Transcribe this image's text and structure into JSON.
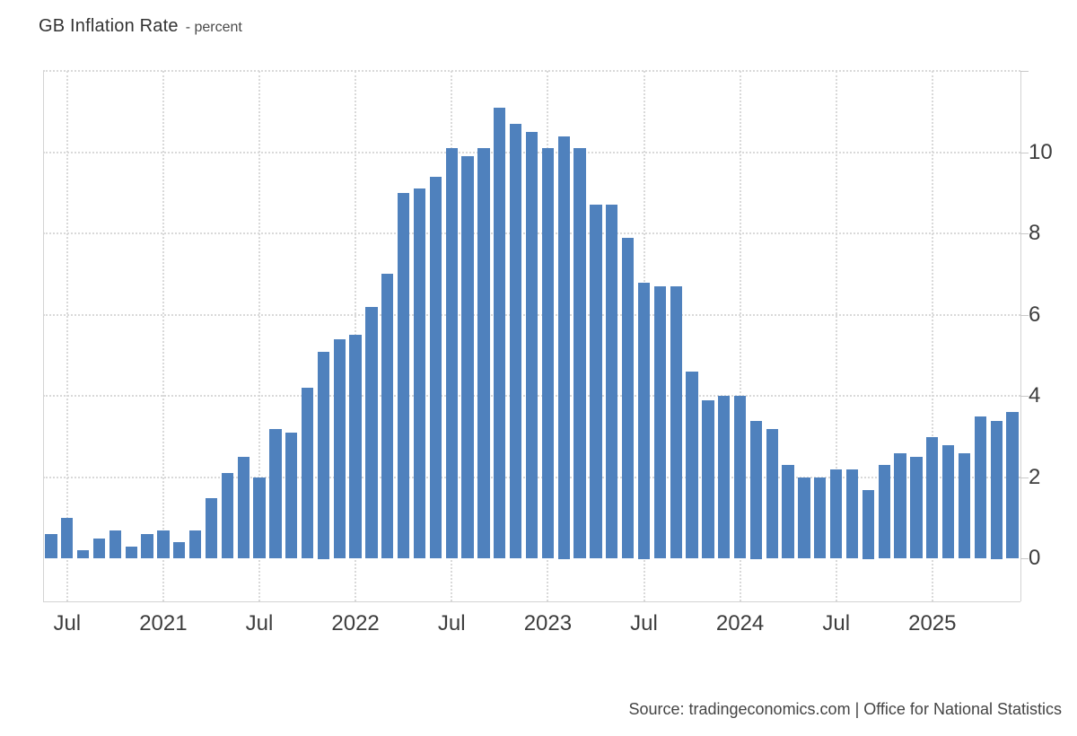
{
  "header": {
    "title": "GB Inflation Rate",
    "subtitle": "- percent"
  },
  "footer": {
    "source": "Source: tradingeconomics.com | Office for National Statistics"
  },
  "chart_data": {
    "type": "bar",
    "title": "GB Inflation Rate",
    "ylabel": "percent",
    "categories": [
      "Jun 2020",
      "Jul 2020",
      "Aug 2020",
      "Sep 2020",
      "Oct 2020",
      "Nov 2020",
      "Dec 2020",
      "Jan 2021",
      "Feb 2021",
      "Mar 2021",
      "Apr 2021",
      "May 2021",
      "Jun 2021",
      "Jul 2021",
      "Aug 2021",
      "Sep 2021",
      "Oct 2021",
      "Nov 2021",
      "Dec 2021",
      "Jan 2022",
      "Feb 2022",
      "Mar 2022",
      "Apr 2022",
      "May 2022",
      "Jun 2022",
      "Jul 2022",
      "Aug 2022",
      "Sep 2022",
      "Oct 2022",
      "Nov 2022",
      "Dec 2022",
      "Jan 2023",
      "Feb 2023",
      "Mar 2023",
      "Apr 2023",
      "May 2023",
      "Jun 2023",
      "Jul 2023",
      "Aug 2023",
      "Sep 2023",
      "Oct 2023",
      "Nov 2023",
      "Dec 2023",
      "Jan 2024",
      "Feb 2024",
      "Mar 2024",
      "Apr 2024",
      "May 2024",
      "Jun 2024",
      "Jul 2024",
      "Aug 2024",
      "Sep 2024",
      "Oct 2024",
      "Nov 2024",
      "Dec 2024",
      "Jan 2025",
      "Feb 2025",
      "Mar 2025",
      "Apr 2025",
      "May 2025",
      "Jun 2025"
    ],
    "values": [
      0.6,
      1.0,
      0.2,
      0.5,
      0.7,
      0.3,
      0.6,
      0.7,
      0.4,
      0.7,
      1.5,
      2.1,
      2.5,
      2.0,
      3.2,
      3.1,
      4.2,
      5.1,
      5.4,
      5.5,
      6.2,
      7.0,
      9.0,
      9.1,
      9.4,
      10.1,
      9.9,
      10.1,
      11.1,
      10.7,
      10.5,
      10.1,
      10.4,
      10.1,
      8.7,
      8.7,
      7.9,
      6.8,
      6.7,
      6.7,
      4.6,
      3.9,
      4.0,
      4.0,
      3.4,
      3.2,
      2.3,
      2.0,
      2.0,
      2.2,
      2.2,
      1.7,
      2.3,
      2.6,
      2.5,
      3.0,
      2.8,
      2.6,
      3.5,
      3.4,
      3.6
    ],
    "x_ticks": [
      {
        "index": 1,
        "label": "Jul"
      },
      {
        "index": 7,
        "label": "2021"
      },
      {
        "index": 13,
        "label": "Jul"
      },
      {
        "index": 19,
        "label": "2022"
      },
      {
        "index": 25,
        "label": "Jul"
      },
      {
        "index": 31,
        "label": "2023"
      },
      {
        "index": 37,
        "label": "Jul"
      },
      {
        "index": 43,
        "label": "2024"
      },
      {
        "index": 49,
        "label": "Jul"
      },
      {
        "index": 55,
        "label": "2025"
      }
    ],
    "y_axis": {
      "side": "right",
      "label_ticks": [
        0,
        2,
        4,
        6,
        8,
        10
      ],
      "grid_ticks": [
        2,
        4,
        6,
        8,
        10,
        12
      ],
      "tick_marks": [
        0,
        2,
        4,
        6,
        8,
        10,
        12
      ],
      "ylim": [
        -1.05,
        12
      ]
    },
    "grid": true,
    "legend_position": "none",
    "colors": {
      "bar": "#4f81bd",
      "grid": "#d9d9d9",
      "axis": "#d3d3d3",
      "text": "#3d3d3d"
    }
  }
}
